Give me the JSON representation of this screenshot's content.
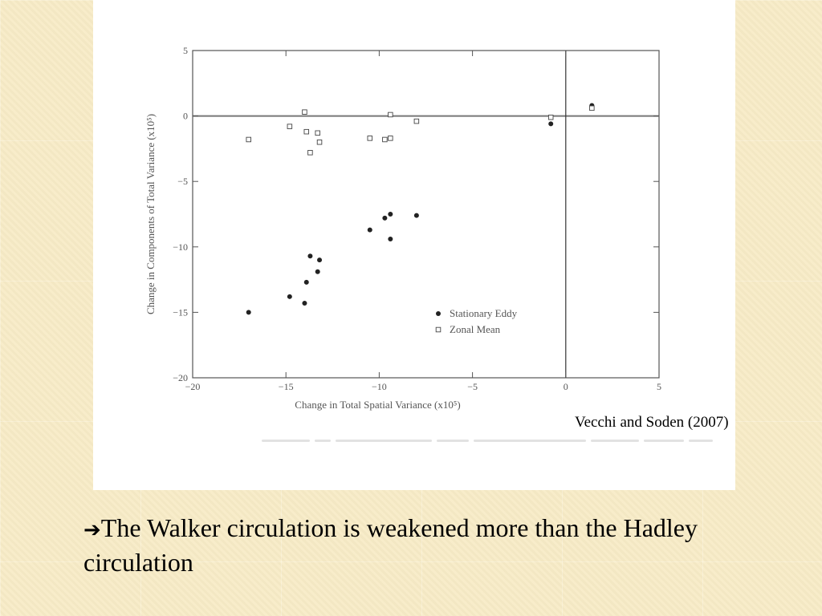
{
  "slide": {
    "citation": "Vecchi and Soden (2007)",
    "arrow_symbol": "➔",
    "takeaway": "The Walker circulation is weakened more than the Hadley circulation",
    "colors": {
      "background": "#f7ebc6",
      "panel": "#ffffff",
      "text": "#000000",
      "axis": "#555555",
      "marker": "#222222"
    }
  },
  "chart_data": {
    "type": "scatter",
    "title": "",
    "xlabel": "Change in Total Spatial Variance (x10⁵)",
    "ylabel": "Change in Components of Total Variance (x10⁵)",
    "xlim": [
      -20,
      5
    ],
    "ylim": [
      -20,
      5
    ],
    "xticks": [
      -20,
      -15,
      -10,
      -5,
      0,
      5
    ],
    "yticks": [
      5,
      0,
      -5,
      -10,
      -15,
      -20
    ],
    "xtick_labels": [
      "−20",
      "−15",
      "−10",
      "−5",
      "0",
      "5"
    ],
    "ytick_labels": [
      "5",
      "0",
      "−5",
      "−10",
      "−15",
      "−20"
    ],
    "reference_lines": {
      "y": 0,
      "x": 0
    },
    "legend_position": "lower-right",
    "series": [
      {
        "name": "Stationary Eddy",
        "marker": "filled-circle",
        "x": [
          -17.0,
          -14.8,
          -14.0,
          -13.9,
          -13.7,
          -13.3,
          -13.2,
          -10.5,
          -9.7,
          -9.4,
          -9.4,
          -8.0,
          -0.8,
          1.4
        ],
        "y": [
          -15.0,
          -13.8,
          -14.3,
          -12.7,
          -10.7,
          -11.9,
          -11.0,
          -8.7,
          -7.8,
          -7.5,
          -9.4,
          -7.6,
          -0.6,
          0.8
        ]
      },
      {
        "name": "Zonal Mean",
        "marker": "open-square",
        "x": [
          -17.0,
          -14.8,
          -14.0,
          -13.9,
          -13.7,
          -13.3,
          -13.2,
          -10.5,
          -9.7,
          -9.4,
          -9.4,
          -8.0,
          -0.8,
          1.4
        ],
        "y": [
          -1.8,
          -0.8,
          0.3,
          -1.2,
          -2.8,
          -1.3,
          -2.0,
          -1.7,
          -1.8,
          0.1,
          -1.7,
          -0.4,
          -0.1,
          0.6
        ]
      }
    ]
  }
}
